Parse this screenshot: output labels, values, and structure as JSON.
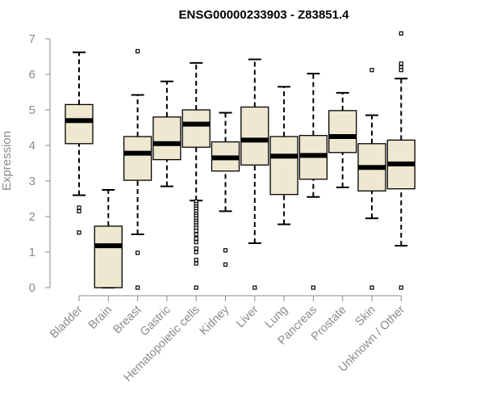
{
  "colors": {
    "box_fill": "#efe8d0",
    "box_stroke": "#000000",
    "axis": "#8a8a8a",
    "text": "#8a8a8a",
    "title": "#000000"
  },
  "chart_data": {
    "type": "boxplot",
    "title": "ENSG00000233903 - Z83851.4",
    "xlabel": "",
    "ylabel": "Expression",
    "ylim": [
      0,
      7
    ],
    "yticks": [
      0,
      1,
      2,
      3,
      4,
      5,
      6,
      7
    ],
    "grid": false,
    "legend": "none",
    "categories": [
      "Bladder",
      "Brain",
      "Breast",
      "Gastric",
      "Hematopoietic cells",
      "Kidney",
      "Liver",
      "Lung",
      "Pancreas",
      "Prostate",
      "Skin",
      "Unknown / Other"
    ],
    "boxes": [
      {
        "category": "Bladder",
        "whisker_low": 2.6,
        "q1": 4.05,
        "median": 4.7,
        "q3": 5.15,
        "whisker_high": 6.62,
        "outliers": [
          2.25,
          2.15,
          1.55
        ]
      },
      {
        "category": "Brain",
        "whisker_low": 0.0,
        "q1": 0.0,
        "median": 1.18,
        "q3": 1.73,
        "whisker_high": 2.75,
        "outliers": []
      },
      {
        "category": "Breast",
        "whisker_low": 1.5,
        "q1": 3.02,
        "median": 3.78,
        "q3": 4.25,
        "whisker_high": 5.42,
        "outliers": [
          6.65,
          0.98,
          0.0
        ]
      },
      {
        "category": "Gastric",
        "whisker_low": 2.85,
        "q1": 3.6,
        "median": 4.05,
        "q3": 4.8,
        "whisker_high": 5.8,
        "outliers": []
      },
      {
        "category": "Hematopoietic cells",
        "whisker_low": 2.45,
        "q1": 3.95,
        "median": 4.6,
        "q3": 5.0,
        "whisker_high": 6.32,
        "outliers": [
          2.42,
          2.35,
          2.28,
          2.22,
          2.15,
          2.08,
          2.02,
          1.95,
          1.88,
          1.82,
          1.75,
          1.68,
          1.6,
          1.5,
          1.38,
          1.28,
          1.1,
          1.0,
          0.78,
          0.68,
          0.0
        ]
      },
      {
        "category": "Kidney",
        "whisker_low": 2.15,
        "q1": 3.28,
        "median": 3.65,
        "q3": 4.1,
        "whisker_high": 4.92,
        "outliers": [
          1.05,
          0.65
        ]
      },
      {
        "category": "Liver",
        "whisker_low": 1.25,
        "q1": 3.45,
        "median": 4.15,
        "q3": 5.08,
        "whisker_high": 6.42,
        "outliers": [
          0.0
        ]
      },
      {
        "category": "Lung",
        "whisker_low": 1.78,
        "q1": 2.62,
        "median": 3.7,
        "q3": 4.25,
        "whisker_high": 5.65,
        "outliers": []
      },
      {
        "category": "Pancreas",
        "whisker_low": 2.55,
        "q1": 3.05,
        "median": 3.72,
        "q3": 4.28,
        "whisker_high": 6.02,
        "outliers": [
          0.0
        ]
      },
      {
        "category": "Prostate",
        "whisker_low": 2.82,
        "q1": 3.8,
        "median": 4.25,
        "q3": 4.98,
        "whisker_high": 5.48,
        "outliers": []
      },
      {
        "category": "Skin",
        "whisker_low": 1.95,
        "q1": 2.72,
        "median": 3.38,
        "q3": 4.05,
        "whisker_high": 4.85,
        "outliers": [
          6.12,
          0.0
        ]
      },
      {
        "category": "Unknown / Other",
        "whisker_low": 1.18,
        "q1": 2.78,
        "median": 3.48,
        "q3": 4.15,
        "whisker_high": 5.88,
        "outliers": [
          7.15,
          6.3,
          6.2,
          6.12,
          0.0
        ]
      }
    ]
  }
}
